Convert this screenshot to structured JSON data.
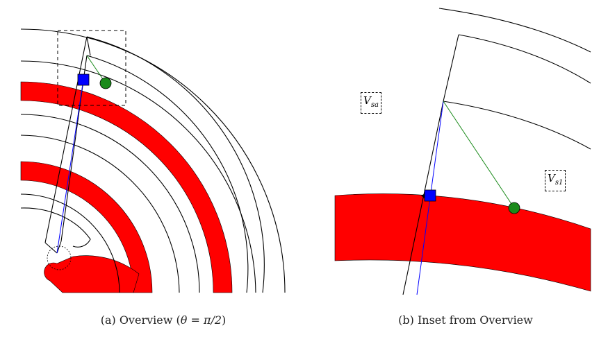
{
  "figure": {
    "panel_a": {
      "caption_prefix": "(a) Overview (",
      "caption_math": "θ = π/2",
      "caption_suffix": ")"
    },
    "panel_b": {
      "caption": "(b) Inset from Overview",
      "labels": [
        {
          "main": "V",
          "sub": "sa"
        },
        {
          "main": "V",
          "sub": "s1"
        }
      ]
    },
    "colors": {
      "band": "#ff0000",
      "blue_line": "#0000ff",
      "green_line": "#1a8a1a",
      "square_marker": "#0000ff",
      "circle_marker": "#1a8a1a",
      "outline": "#000000"
    }
  }
}
